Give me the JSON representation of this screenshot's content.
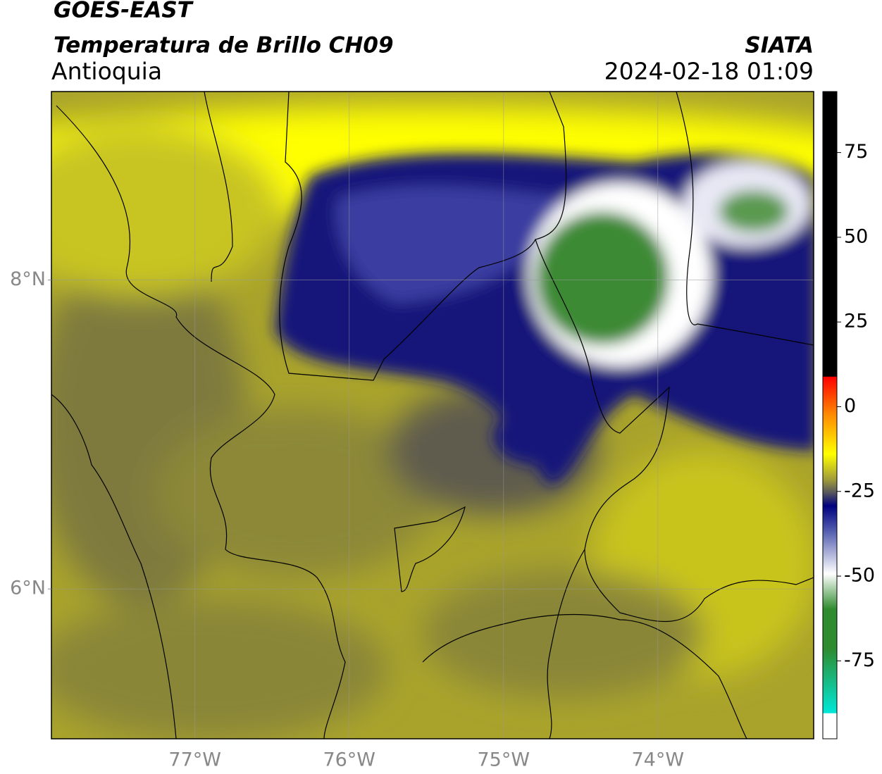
{
  "header": {
    "title": "GOES-EAST",
    "subtitle": "Temperatura de Brillo CH09",
    "region": "Antioquia",
    "source": "SIATA",
    "datetime": "2024-02-18 01:09"
  },
  "map": {
    "xlim": [
      -77.93,
      -72.99
    ],
    "ylim": [
      5.03,
      9.22
    ],
    "grid": true,
    "xticks": [
      {
        "value": -77,
        "label": "77°W"
      },
      {
        "value": -76,
        "label": "76°W"
      },
      {
        "value": -75,
        "label": "75°W"
      },
      {
        "value": -74,
        "label": "74°W"
      }
    ],
    "yticks": [
      {
        "value": 8,
        "label": "8°N"
      },
      {
        "value": 6,
        "label": "6°N"
      }
    ]
  },
  "colorbar": {
    "lim": [
      -98,
      93
    ],
    "ticks": [
      75,
      50,
      25,
      0,
      -25,
      -50,
      -75
    ]
  }
}
